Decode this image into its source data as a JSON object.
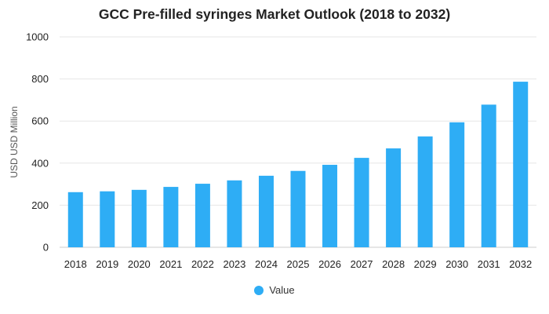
{
  "chart_data": {
    "type": "bar",
    "title": "GCC Pre-filled syringes Market Outlook (2018 to 2032)",
    "xlabel": "",
    "ylabel": "USD USD Million",
    "categories": [
      "2018",
      "2019",
      "2020",
      "2021",
      "2022",
      "2023",
      "2024",
      "2025",
      "2026",
      "2027",
      "2028",
      "2029",
      "2030",
      "2031",
      "2032"
    ],
    "series": [
      {
        "name": "Value",
        "values": [
          262,
          266,
          273,
          287,
          302,
          318,
          340,
          363,
          392,
          425,
          470,
          527,
          594,
          678,
          787
        ]
      }
    ],
    "ylim": [
      0,
      1000
    ],
    "yticks": [
      0,
      200,
      400,
      600,
      800,
      1000
    ],
    "grid": true,
    "legend_position": "bottom",
    "colors": {
      "bar": "#2eadf5",
      "grid": "#e6e6e6",
      "axis": "#cccccc"
    }
  }
}
